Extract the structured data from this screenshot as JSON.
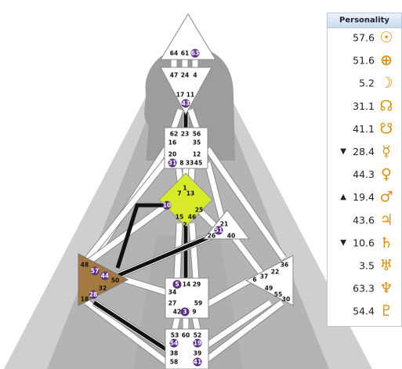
{
  "panel": {
    "title": "Personality",
    "rows": [
      {
        "marker": null,
        "value": "57.6",
        "symbol": "☉"
      },
      {
        "marker": null,
        "value": "51.6",
        "symbol": "⊕"
      },
      {
        "marker": null,
        "value": "5.2",
        "symbol": "☽"
      },
      {
        "marker": null,
        "value": "31.1",
        "symbol": "☊"
      },
      {
        "marker": null,
        "value": "41.1",
        "symbol": "☋"
      },
      {
        "marker": "▼",
        "value": "28.4",
        "symbol": "☿"
      },
      {
        "marker": null,
        "value": "44.3",
        "symbol": "♀"
      },
      {
        "marker": "▲",
        "value": "19.4",
        "symbol": "♂"
      },
      {
        "marker": null,
        "value": "43.6",
        "symbol": "♃"
      },
      {
        "marker": "▼",
        "value": "10.6",
        "symbol": "♄"
      },
      {
        "marker": null,
        "value": "3.5",
        "symbol": "♅"
      },
      {
        "marker": null,
        "value": "63.3",
        "symbol": "♆"
      },
      {
        "marker": null,
        "value": "54.4",
        "symbol": "♇"
      }
    ]
  },
  "bodygraph": {
    "gates": [
      {
        "label": "64",
        "active": false
      },
      {
        "label": "61",
        "active": false
      },
      {
        "label": "63",
        "active": true
      },
      {
        "label": "47",
        "active": false
      },
      {
        "label": "24",
        "active": false
      },
      {
        "label": "4",
        "active": false
      },
      {
        "label": "17",
        "active": false
      },
      {
        "label": "11",
        "active": false
      },
      {
        "label": "43",
        "active": true
      },
      {
        "label": "62",
        "active": false
      },
      {
        "label": "23",
        "active": false
      },
      {
        "label": "56",
        "active": false
      },
      {
        "label": "16",
        "active": false
      },
      {
        "label": "35",
        "active": false
      },
      {
        "label": "20",
        "active": false
      },
      {
        "label": "12",
        "active": false
      },
      {
        "label": "31",
        "active": true
      },
      {
        "label": "8",
        "active": false
      },
      {
        "label": "33",
        "active": false
      },
      {
        "label": "45",
        "active": false
      },
      {
        "label": "1",
        "active": false
      },
      {
        "label": "7",
        "active": false
      },
      {
        "label": "13",
        "active": false
      },
      {
        "label": "10",
        "active": true
      },
      {
        "label": "25",
        "active": false
      },
      {
        "label": "15",
        "active": false
      },
      {
        "label": "46",
        "active": false
      },
      {
        "label": "2",
        "active": false
      },
      {
        "label": "21",
        "active": false
      },
      {
        "label": "51",
        "active": true
      },
      {
        "label": "26",
        "active": false
      },
      {
        "label": "40",
        "active": false
      },
      {
        "label": "48",
        "active": false
      },
      {
        "label": "57",
        "active": true
      },
      {
        "label": "44",
        "active": true
      },
      {
        "label": "50",
        "active": false
      },
      {
        "label": "32",
        "active": false
      },
      {
        "label": "28",
        "active": true
      },
      {
        "label": "18",
        "active": false
      },
      {
        "label": "36",
        "active": false
      },
      {
        "label": "22",
        "active": false
      },
      {
        "label": "37",
        "active": false
      },
      {
        "label": "6",
        "active": false
      },
      {
        "label": "49",
        "active": false
      },
      {
        "label": "55",
        "active": false
      },
      {
        "label": "30",
        "active": false
      },
      {
        "label": "5",
        "active": true
      },
      {
        "label": "14",
        "active": false
      },
      {
        "label": "29",
        "active": false
      },
      {
        "label": "34",
        "active": false
      },
      {
        "label": "27",
        "active": false
      },
      {
        "label": "59",
        "active": false
      },
      {
        "label": "42",
        "active": false
      },
      {
        "label": "3",
        "active": true
      },
      {
        "label": "9",
        "active": false
      },
      {
        "label": "53",
        "active": false
      },
      {
        "label": "60",
        "active": false
      },
      {
        "label": "52",
        "active": false
      },
      {
        "label": "54",
        "active": true
      },
      {
        "label": "19",
        "active": true
      },
      {
        "label": "38",
        "active": false
      },
      {
        "label": "39",
        "active": false
      },
      {
        "label": "58",
        "active": false
      },
      {
        "label": "41",
        "active": true
      }
    ]
  }
}
